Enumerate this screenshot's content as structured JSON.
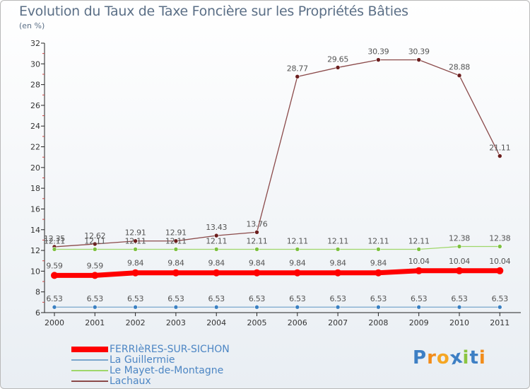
{
  "title": "Evolution du Taux de Taxe Foncière sur les Propriétés Bâties",
  "subtitle": "(en %)",
  "logo": {
    "letters": [
      "P",
      "r",
      "o",
      "x",
      "i",
      "t",
      "i"
    ],
    "colors": [
      "#3d7fc4",
      "#f28c1a",
      "#f5a623",
      "#3d7fc4",
      "#8bc540",
      "#3d7fc4",
      "#f28c1a"
    ]
  },
  "chart_data": {
    "type": "line",
    "x": [
      "2000",
      "2001",
      "2002",
      "2003",
      "2004",
      "2005",
      "2006",
      "2007",
      "2008",
      "2009",
      "2010",
      "2011"
    ],
    "ylim": [
      6,
      32
    ],
    "yticks": [
      "6",
      "8",
      "10",
      "12",
      "14",
      "16",
      "18",
      "20",
      "22",
      "24",
      "26",
      "28",
      "30",
      "32"
    ],
    "grid": false,
    "legend_position": "bottom-left",
    "series": [
      {
        "name": "FERRIèRES-SUR-SICHON",
        "color": "#ff0000",
        "marker": "#ff0000",
        "width": 7,
        "values": [
          9.59,
          9.59,
          9.84,
          9.84,
          9.84,
          9.84,
          9.84,
          9.84,
          9.84,
          10.04,
          10.04,
          10.04
        ],
        "labels": [
          "9.59",
          "9.59",
          "9.84",
          "9.84",
          "9.84",
          "9.84",
          "9.84",
          "9.84",
          "9.84",
          "10.04",
          "10.04",
          "10.04"
        ]
      },
      {
        "name": "La Guillermie",
        "color": "#7aa6cc",
        "marker": "#3a80c2",
        "width": 1.3,
        "values": [
          6.53,
          6.53,
          6.53,
          6.53,
          6.53,
          6.53,
          6.53,
          6.53,
          6.53,
          6.53,
          6.53,
          6.53
        ],
        "labels": [
          "6.53",
          "6.53",
          "6.53",
          "6.53",
          "6.53",
          "6.53",
          "6.53",
          "6.53",
          "6.53",
          "6.53",
          "6.53",
          "6.53"
        ]
      },
      {
        "name": "Le Mayet-de-Montagne",
        "color": "#9fd76a",
        "marker": "#7dc142",
        "width": 1.3,
        "values": [
          12.11,
          12.11,
          12.11,
          12.11,
          12.11,
          12.11,
          12.11,
          12.11,
          12.11,
          12.11,
          12.38,
          12.38
        ],
        "labels": [
          "12.11",
          "12.11",
          "12.11",
          "12.11",
          "12.11",
          "12.11",
          "12.11",
          "12.11",
          "12.11",
          "12.11",
          "12.38",
          "12.38"
        ]
      },
      {
        "name": "Lachaux",
        "color": "#8b4a4a",
        "marker": "#6b1e1e",
        "width": 1.3,
        "values": [
          12.35,
          12.62,
          12.91,
          12.91,
          13.43,
          13.76,
          28.77,
          29.65,
          30.39,
          30.39,
          28.88,
          21.11
        ],
        "labels": [
          "12.35",
          "12.62",
          "12.91",
          "12.91",
          "13.43",
          "13.76",
          "28.77",
          "29.65",
          "30.39",
          "30.39",
          "28.88",
          "21.11"
        ]
      }
    ]
  }
}
